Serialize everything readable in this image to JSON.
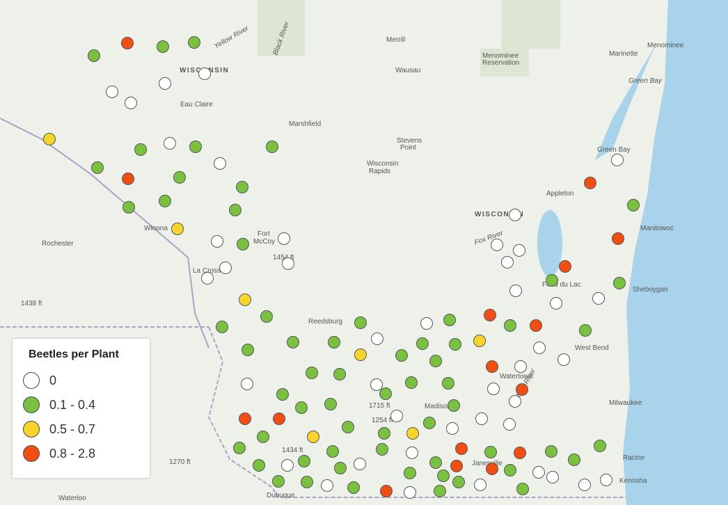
{
  "map_labels": [
    "Merrill",
    "Menominee",
    "Reservation",
    "Marinette",
    "Menominee",
    "WISCONSIN",
    "Wausau",
    "Green Bay",
    "Eau Claire",
    "Marshfield",
    "Stevens",
    "Point",
    "Wisconsin",
    "Rapids",
    "Green Bay",
    "Appleton",
    "WISCONSIN",
    "Manitowoc",
    "Rochester",
    "Winona",
    "Fort",
    "McCoy",
    "La Crosse",
    "1454 ft",
    "1438 ft",
    "Fond du Lac",
    "Sheboygan",
    "Reedsburg",
    "West Bend",
    "Watertown",
    "Milwaukee",
    "Madison",
    "1715 ft",
    "1254 ft",
    "1434 ft",
    "Janesville",
    "Racine",
    "Kenosha",
    "1270 ft",
    "Waterloo",
    "Dubuque",
    "Black River",
    "Yellow River",
    "Fox River",
    "Rock River"
  ],
  "legend": {
    "title": "Beetles per Plant",
    "items": [
      {
        "label": "0",
        "color": "#ffffff"
      },
      {
        "label": "0.1 - 0.4",
        "color": "#7ac142"
      },
      {
        "label": "0.5 - 0.7",
        "color": "#f9d52b"
      },
      {
        "label": "0.8 - 2.8",
        "color": "#f04e12"
      }
    ]
  }
}
